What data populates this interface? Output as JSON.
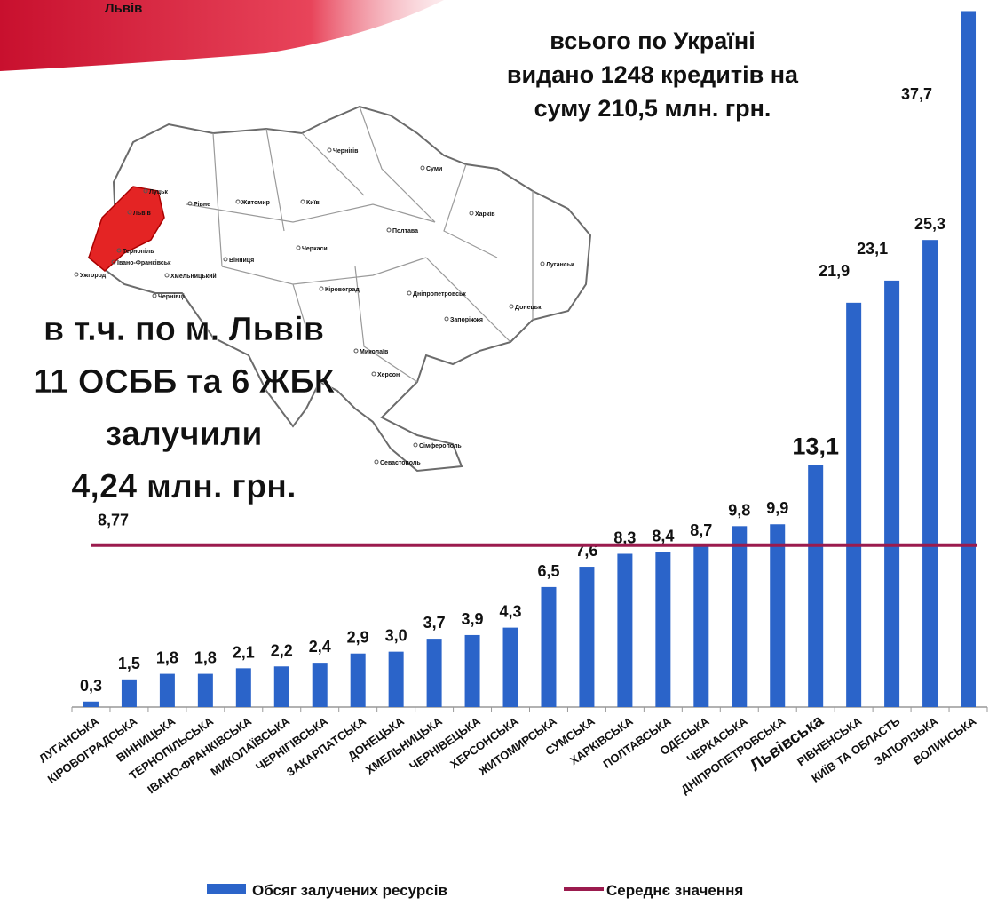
{
  "banner": {
    "text": "Львів"
  },
  "map": {
    "cities": [
      "Чернігів",
      "Суми",
      "Луцьк",
      "Рівне",
      "Житомир",
      "Київ",
      "Харків",
      "Львів",
      "Тернопіль",
      "Хмельницький",
      "Вінниця",
      "Полтава",
      "Луганськ",
      "Івано-Франківськ",
      "Ужгород",
      "Черкаси",
      "Кіровоград",
      "Чернівці",
      "Дніпропетровськ",
      "Донецьк",
      "Запоріжжя",
      "Миколаїв",
      "Херсон",
      "Сімферополь",
      "Севастополь"
    ]
  },
  "chart_data": {
    "type": "bar",
    "annotations": {
      "total": [
        "всього по Україні",
        "видано 1248 кредитів на",
        "суму 210,5 млн. грн."
      ],
      "lviv": [
        "в т.ч. по м. Львів",
        "11 ОСББ та 6 ЖБК",
        "залучили",
        "4,24 млн. грн."
      ]
    },
    "categories": [
      "ЛУГАНСЬКА",
      "КІРОВОГРАДСЬКА",
      "ВІННИЦЬКА",
      "ТЕРНОПІЛЬСЬКА",
      "ІВАНО-ФРАНКІВСЬКА",
      "МИКОЛАЇВСЬКА",
      "ЧЕРНІГІВСЬКА",
      "ЗАКАРПАТСЬКА",
      "ДОНЕЦЬКА",
      "ХМЕЛЬНИЦЬКА",
      "ЧЕРНІВЕЦЬКА",
      "ХЕРСОНСЬКА",
      "ЖИТОМИРСЬКА",
      "СУМСЬКА",
      "ХАРКІВСЬКА",
      "ПОЛТАВСЬКА",
      "ОДЕСЬКА",
      "ЧЕРКАСЬКА",
      "ДНІПРОПЕТРОВСЬКА",
      "Львівська",
      "РІВНЕНСЬКА",
      "КИЇВ ТА ОБЛАСТЬ",
      "ЗАПОРІЗЬКА",
      "ВОЛИНСЬКА"
    ],
    "series": [
      {
        "name": "Обсяг залучених ресурсів",
        "color": "#2b64c9",
        "values": [
          0.3,
          1.5,
          1.8,
          1.8,
          2.1,
          2.2,
          2.4,
          2.9,
          3.0,
          3.7,
          3.9,
          4.3,
          6.5,
          7.6,
          8.3,
          8.4,
          8.7,
          9.8,
          9.9,
          13.1,
          21.9,
          23.1,
          25.3,
          37.7
        ],
        "value_labels": [
          "0,3",
          "1,5",
          "1,8",
          "1,8",
          "2,1",
          "2,2",
          "2,4",
          "2,9",
          "3,0",
          "3,7",
          "3,9",
          "4,3",
          "6,5",
          "7,6",
          "8,3",
          "8,4",
          "8,7",
          "9,8",
          "9,9",
          "13,1",
          "21,9",
          "23,1",
          "25,3",
          "37,7"
        ]
      }
    ],
    "mean": {
      "name": "Середнє значення",
      "color": "#9b1b4e",
      "value": 8.77,
      "value_label": "8,77"
    },
    "highlight": {
      "category": "Львівська",
      "color": "#ee1c25"
    },
    "ylim": [
      0,
      38.3
    ]
  }
}
